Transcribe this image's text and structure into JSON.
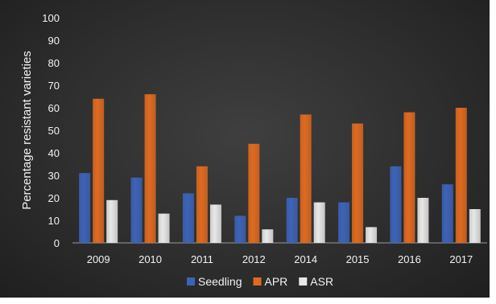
{
  "chart_data": {
    "type": "bar",
    "title": "",
    "xlabel": "",
    "ylabel": "Percentage resistant varieties",
    "ylim": [
      0,
      100
    ],
    "yticks": [
      0,
      10,
      20,
      30,
      40,
      50,
      60,
      70,
      80,
      90,
      100
    ],
    "categories": [
      "2009",
      "2010",
      "2011",
      "2012",
      "2014",
      "2015",
      "2016",
      "2017"
    ],
    "series": [
      {
        "name": "Seedling",
        "color": "#3d63b8",
        "values": [
          31,
          29,
          22,
          12,
          20,
          18,
          34,
          26
        ]
      },
      {
        "name": "APR",
        "color": "#e06a1f",
        "values": [
          64,
          66,
          34,
          44,
          57,
          53,
          58,
          60
        ]
      },
      {
        "name": "ASR",
        "color": "#e8e8e8",
        "values": [
          19,
          13,
          17,
          6,
          18,
          7,
          20,
          15
        ]
      }
    ],
    "grid": false,
    "legend_position": "bottom"
  }
}
